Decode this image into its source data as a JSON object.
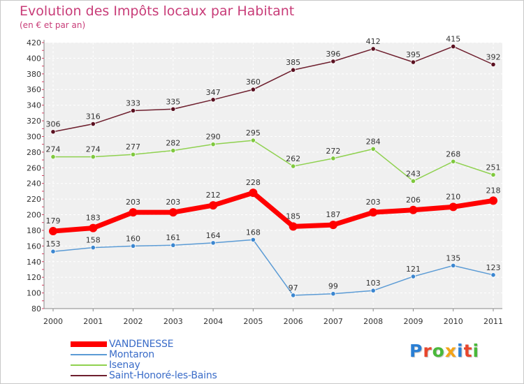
{
  "title": "Evolution des Impôts locaux par Habitant",
  "subtitle": "(en € et par an)",
  "logo": {
    "text": "Proxiti",
    "letter_colors": [
      "#2a7fd4",
      "#e8462c",
      "#49b83a",
      "#f4a418",
      "#2a7fd4",
      "#e8462c",
      "#49b83a"
    ]
  },
  "chart_data": {
    "type": "line",
    "x": [
      "2000",
      "2001",
      "2002",
      "2003",
      "2004",
      "2005",
      "2006",
      "2007",
      "2008",
      "2009",
      "2010",
      "2011"
    ],
    "ylim": [
      80,
      420
    ],
    "yticks": [
      80,
      100,
      120,
      140,
      160,
      180,
      200,
      220,
      240,
      260,
      280,
      300,
      320,
      340,
      360,
      380,
      400,
      420
    ],
    "grid": true,
    "legend_position": "bottom-left",
    "series": [
      {
        "name": "VANDENESSE",
        "color": "#ff0000",
        "values": [
          179,
          183,
          203,
          203,
          212,
          228,
          185,
          187,
          203,
          206,
          210,
          218
        ]
      },
      {
        "name": "Montaron",
        "color": "#5b9bd5",
        "values": [
          153,
          158,
          160,
          161,
          164,
          168,
          97,
          99,
          103,
          121,
          135,
          123
        ]
      },
      {
        "name": "Isenay",
        "color": "#8fd14f",
        "values": [
          274,
          274,
          277,
          282,
          290,
          295,
          262,
          272,
          284,
          243,
          268,
          251
        ]
      },
      {
        "name": "Saint-Honoré-les-Bains",
        "color": "#6e1f2e",
        "values": [
          306,
          316,
          333,
          335,
          347,
          360,
          385,
          396,
          412,
          395,
          415,
          392
        ]
      }
    ]
  }
}
